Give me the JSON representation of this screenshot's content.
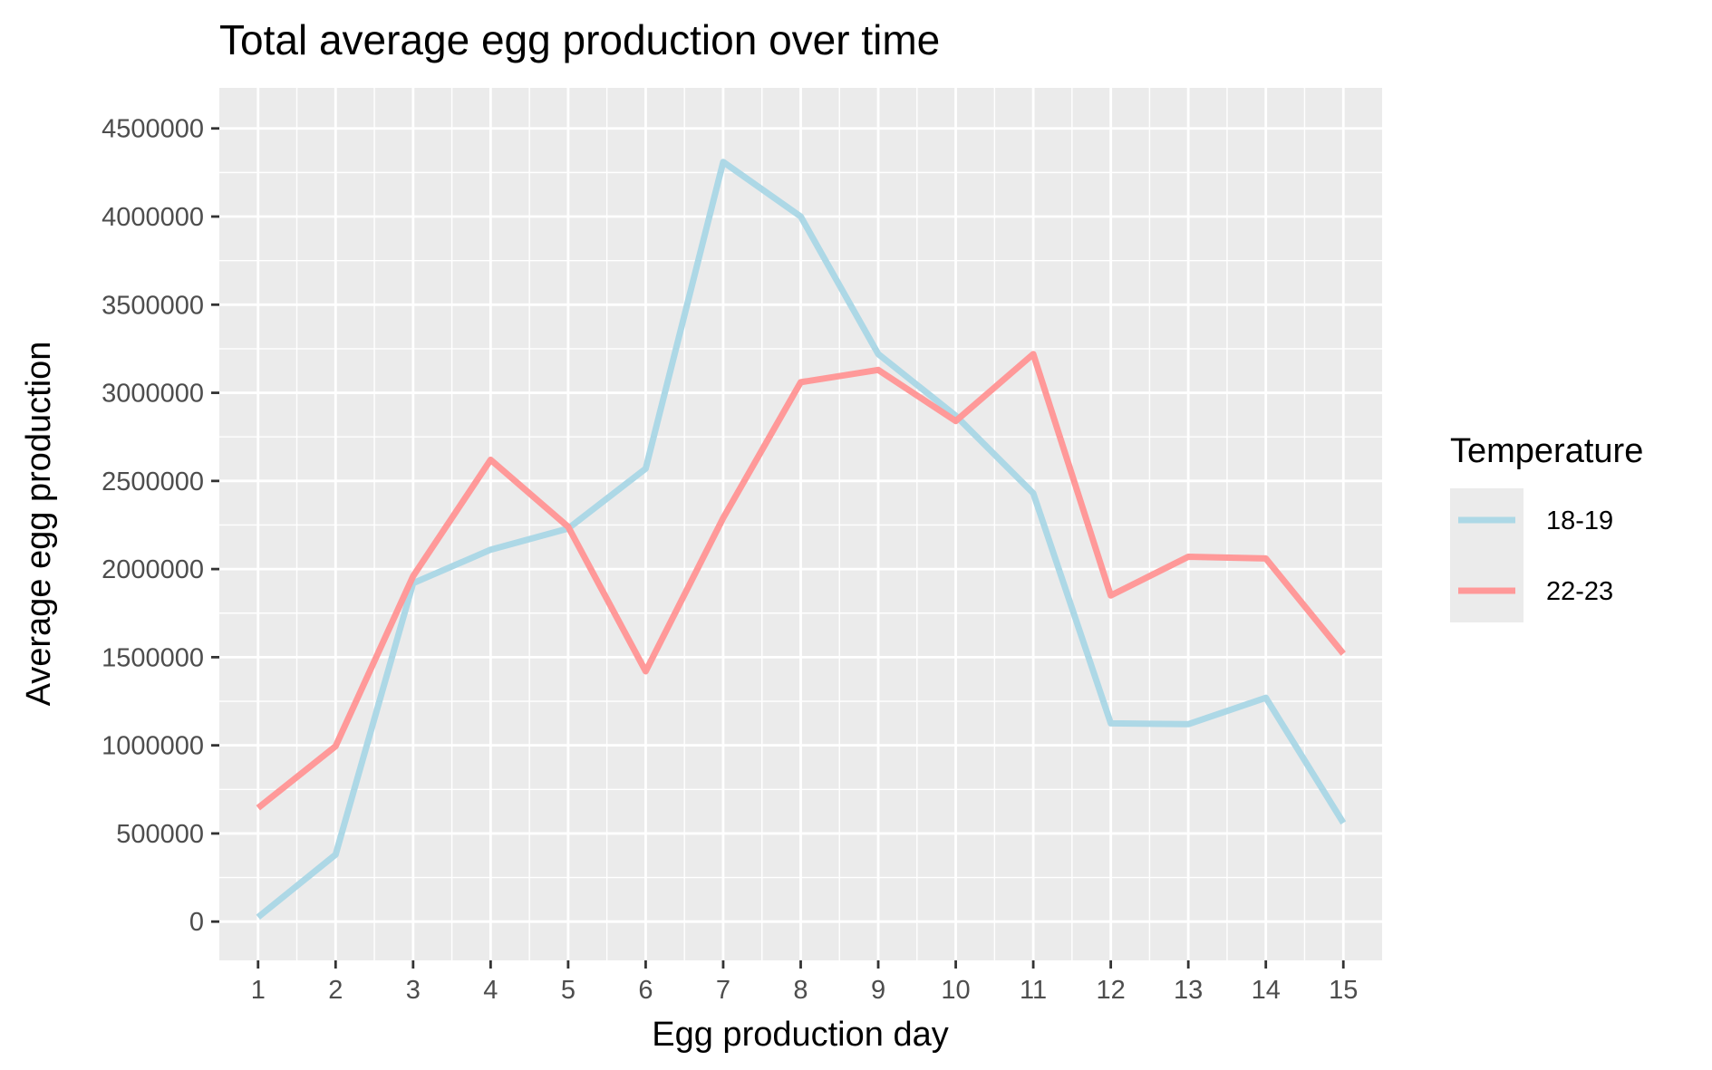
{
  "chart_data": {
    "type": "line",
    "title": "Total average egg production over time",
    "xlabel": "Egg production day",
    "ylabel": "Average egg production",
    "x": [
      1,
      2,
      3,
      4,
      5,
      6,
      7,
      8,
      9,
      10,
      11,
      12,
      13,
      14,
      15
    ],
    "x_ticks": [
      "1",
      "2",
      "3",
      "4",
      "5",
      "6",
      "7",
      "8",
      "9",
      "10",
      "11",
      "12",
      "13",
      "14",
      "15"
    ],
    "y_ticks": [
      0,
      500000,
      1000000,
      1500000,
      2000000,
      2500000,
      3000000,
      3500000,
      4000000,
      4500000
    ],
    "y_tick_labels": [
      "0",
      "500000",
      "1000000",
      "1500000",
      "2000000",
      "2500000",
      "3000000",
      "3500000",
      "4000000",
      "4500000"
    ],
    "xlim": [
      0.5,
      15.5
    ],
    "ylim": [
      -220000,
      4730000
    ],
    "grid": true,
    "legend_title": "Temperature",
    "legend_position": "right",
    "series": [
      {
        "name": "18-19",
        "color": "#ADD8E6",
        "values": [
          25000,
          380000,
          1920000,
          2110000,
          2230000,
          2570000,
          4310000,
          4000000,
          3220000,
          2870000,
          2430000,
          1125000,
          1120000,
          1270000,
          560000
        ]
      },
      {
        "name": "22-23",
        "color": "#FF9999",
        "values": [
          645000,
          995000,
          1960000,
          2620000,
          2240000,
          1420000,
          2290000,
          3060000,
          3130000,
          2840000,
          3220000,
          1850000,
          2070000,
          2060000,
          1520000
        ]
      }
    ],
    "panel_background": "#EBEBEB",
    "grid_color": "#FFFFFF"
  }
}
